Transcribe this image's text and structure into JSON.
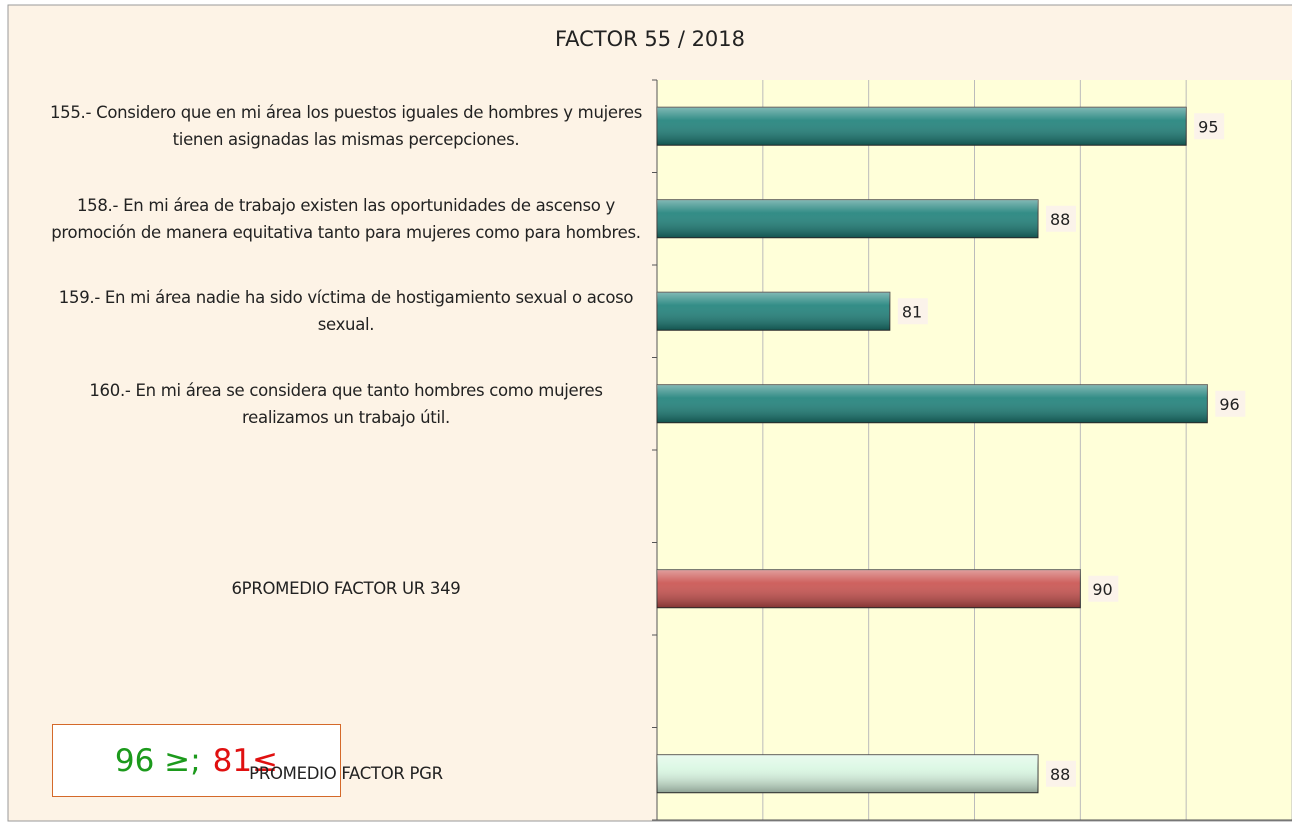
{
  "chart_data": {
    "type": "bar",
    "orientation": "horizontal",
    "title": "FACTOR 55 / 2018",
    "categories": [
      "155.- Considero que en mi área los puestos iguales de hombres y mujeres tienen asignadas las mismas percepciones.",
      "158.- En mi área de trabajo existen las oportunidades de ascenso y promoción de manera equitativa tanto para mujeres como para hombres.",
      "159.- En mi área nadie ha sido víctima de hostigamiento sexual o acoso sexual.",
      "160.- En mi área se considera que tanto hombres como mujeres realizamos un trabajo útil.",
      null,
      "6PROMEDIO FACTOR UR 349",
      null,
      "PROMEDIO FACTOR PGR"
    ],
    "values": [
      95,
      88,
      81,
      96,
      null,
      90,
      null,
      88
    ],
    "colors": [
      "#1c8079",
      "#1c8079",
      "#1c8079",
      "#1c8079",
      null,
      "#c9504d",
      null,
      "#d9f7e2"
    ],
    "xlim": [
      70,
      100
    ],
    "xticks": [
      70,
      75,
      80,
      85,
      90,
      95,
      100
    ],
    "grid": true,
    "annotation": [
      {
        "text": "96 ≥;",
        "color": "#1c9a1c"
      },
      {
        "text": "81≤",
        "color": "#e01010"
      }
    ]
  }
}
